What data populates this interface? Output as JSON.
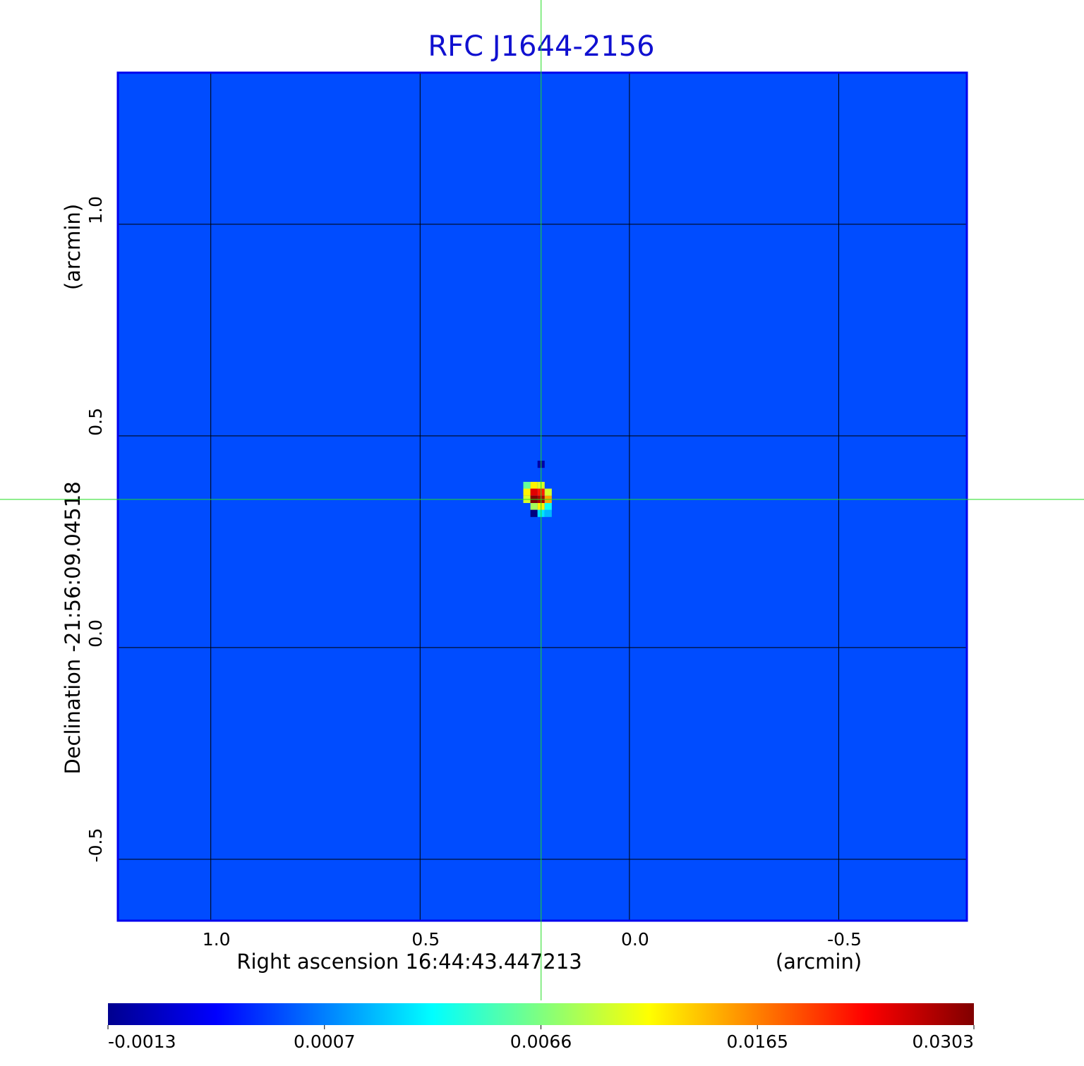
{
  "chart_data": {
    "type": "heatmap",
    "title": "RFC J1644-2156",
    "x_label": "Right ascension  16:44:43.447213",
    "x_unit": "(arcmin)",
    "y_label": "Declination  -21:56:09.04518",
    "y_unit": "(arcmin)",
    "xlim": [
      1.222,
      -0.806
    ],
    "ylim": [
      -0.645,
      1.358
    ],
    "xticks": [
      {
        "value": 1,
        "label": "1.0"
      },
      0.5,
      {
        "value": 0,
        "label": "0.0"
      },
      -0.5
    ],
    "yticks": [
      -0.5,
      {
        "value": 0,
        "label": "0.0"
      },
      0.5,
      {
        "value": 1,
        "label": "1.0"
      }
    ],
    "grid": true,
    "background_value": 0.0003,
    "pixel_size": 0.017,
    "pixels": [
      {
        "x": 0.211,
        "y": 0.433,
        "value": -0.001
      },
      {
        "x": 0.245,
        "y": 0.383,
        "value": 0.006
      },
      {
        "x": 0.228,
        "y": 0.383,
        "value": 0.012
      },
      {
        "x": 0.211,
        "y": 0.383,
        "value": 0.01
      },
      {
        "x": 0.245,
        "y": 0.367,
        "value": 0.012
      },
      {
        "x": 0.228,
        "y": 0.367,
        "value": 0.025
      },
      {
        "x": 0.211,
        "y": 0.367,
        "value": 0.022
      },
      {
        "x": 0.194,
        "y": 0.367,
        "value": 0.01
      },
      {
        "x": 0.245,
        "y": 0.35,
        "value": 0.01
      },
      {
        "x": 0.228,
        "y": 0.35,
        "value": 0.0303
      },
      {
        "x": 0.211,
        "y": 0.35,
        "value": 0.028
      },
      {
        "x": 0.194,
        "y": 0.35,
        "value": 0.015
      },
      {
        "x": 0.228,
        "y": 0.333,
        "value": 0.008
      },
      {
        "x": 0.211,
        "y": 0.333,
        "value": 0.012
      },
      {
        "x": 0.194,
        "y": 0.333,
        "value": 0.004
      },
      {
        "x": 0.228,
        "y": 0.317,
        "value": -0.0013
      },
      {
        "x": 0.211,
        "y": 0.317,
        "value": 0.003
      },
      {
        "x": 0.194,
        "y": 0.317,
        "value": 0.002
      }
    ],
    "crosshair": {
      "x": 0.211,
      "y": 0.35,
      "color": "#22dd22"
    },
    "colorbar": {
      "ticks": [
        -0.0013,
        0.0007,
        0.0066,
        0.0165,
        0.0303
      ]
    }
  }
}
